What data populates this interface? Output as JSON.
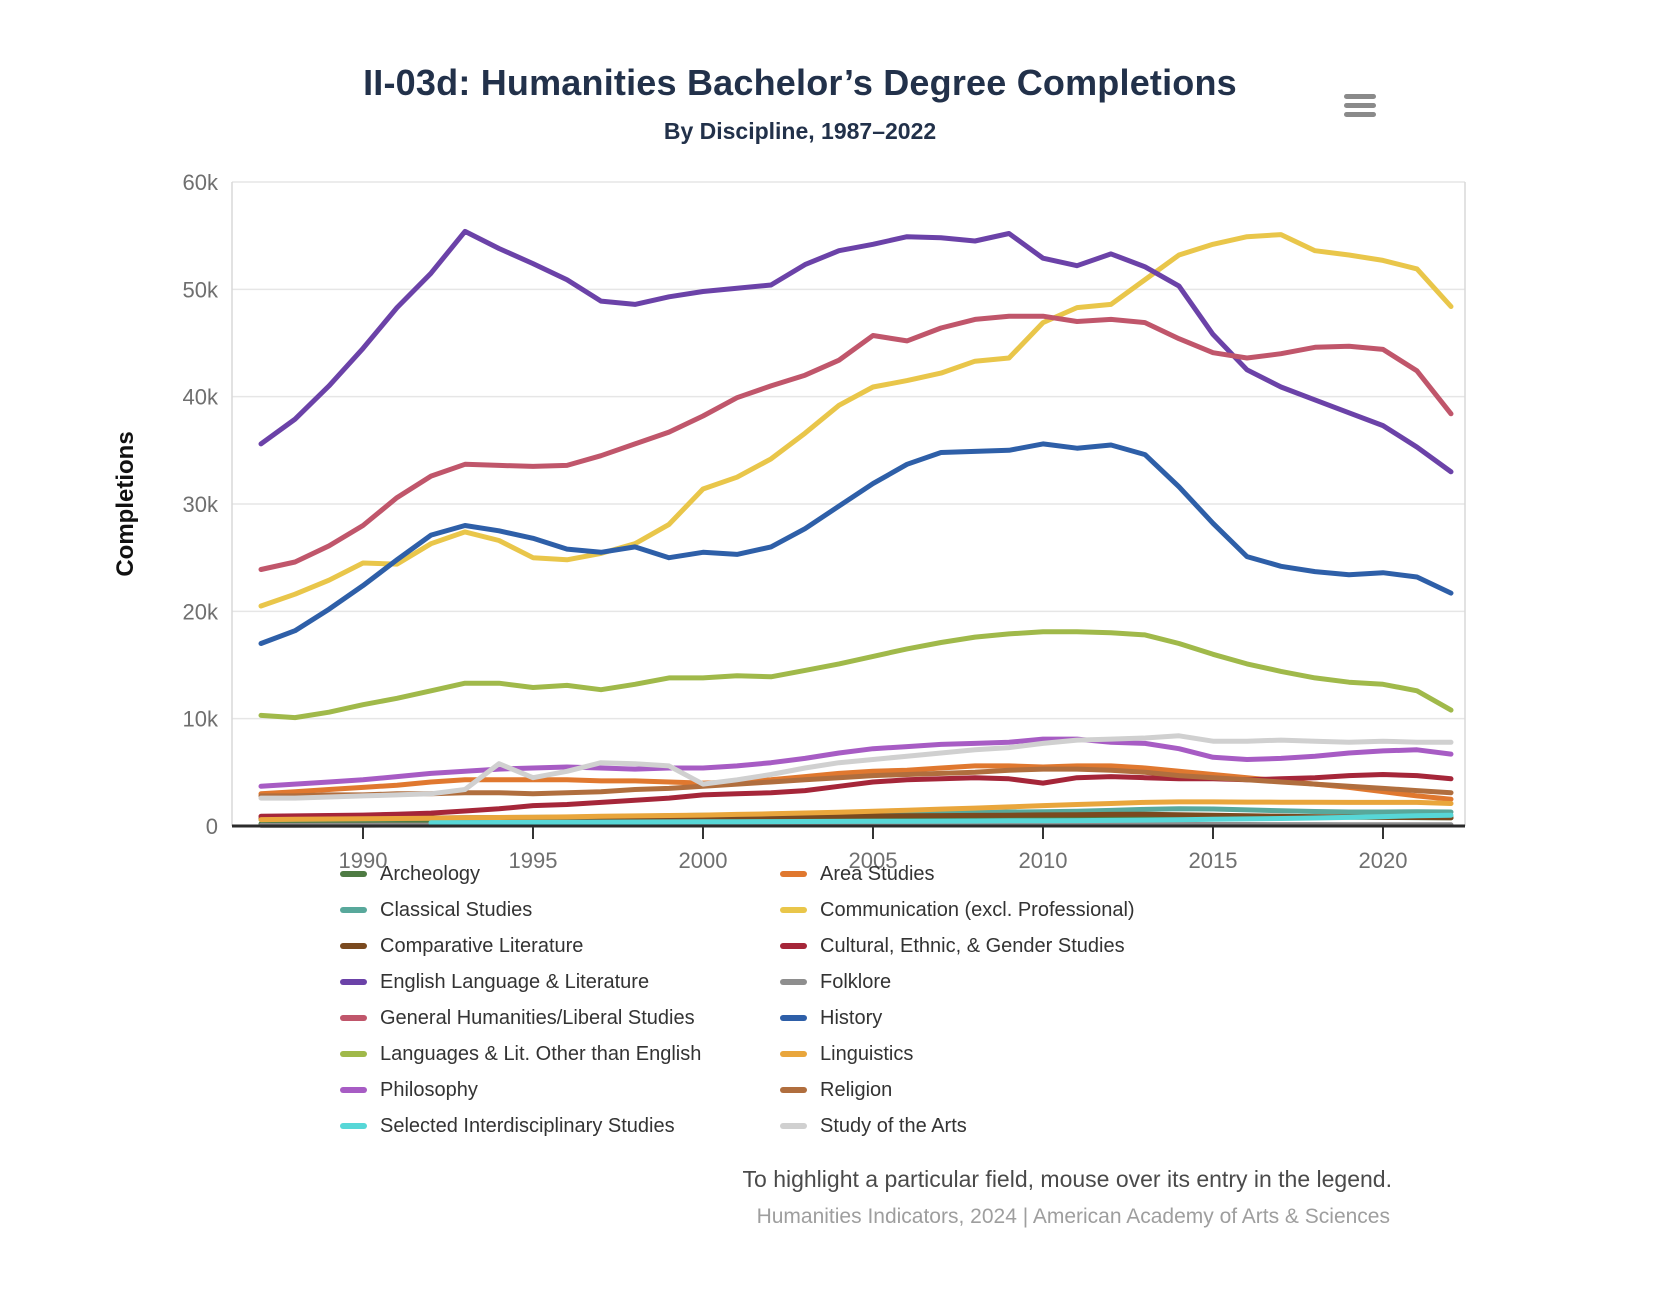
{
  "header": {
    "title": "II-03d: Humanities Bachelor’s Degree Completions",
    "subtitle": "By Discipline, 1987–2022"
  },
  "y_axis": {
    "title": "Completions",
    "ticks": [
      {
        "value": 0,
        "label": "0"
      },
      {
        "value": 10000,
        "label": "10k"
      },
      {
        "value": 20000,
        "label": "20k"
      },
      {
        "value": 30000,
        "label": "30k"
      },
      {
        "value": 40000,
        "label": "40k"
      },
      {
        "value": 50000,
        "label": "50k"
      },
      {
        "value": 60000,
        "label": "60k"
      }
    ]
  },
  "x_axis": {
    "ticks": [
      {
        "value": 1990,
        "label": "1990"
      },
      {
        "value": 1995,
        "label": "1995"
      },
      {
        "value": 2000,
        "label": "2000"
      },
      {
        "value": 2005,
        "label": "2005"
      },
      {
        "value": 2010,
        "label": "2010"
      },
      {
        "value": 2015,
        "label": "2015"
      },
      {
        "value": 2020,
        "label": "2020"
      }
    ]
  },
  "footer": {
    "hint": "To highlight a particular field, mouse over its entry in the legend.",
    "credits": "Humanities Indicators, 2024 | American Academy of Arts & Sciences"
  },
  "chart_data": {
    "type": "line",
    "title": "II-03d: Humanities Bachelor’s Degree Completions",
    "subtitle": "By Discipline, 1987–2022",
    "xlabel": "",
    "ylabel": "Completions",
    "x_range": [
      1987,
      2022
    ],
    "ylim": [
      0,
      60000
    ],
    "grid": true,
    "legend_position": "bottom, two columns",
    "x": [
      1987,
      1988,
      1989,
      1990,
      1991,
      1992,
      1993,
      1994,
      1995,
      1996,
      1997,
      1998,
      1999,
      2000,
      2001,
      2002,
      2003,
      2004,
      2005,
      2006,
      2007,
      2008,
      2009,
      2010,
      2011,
      2012,
      2013,
      2014,
      2015,
      2016,
      2017,
      2018,
      2019,
      2020,
      2021,
      2022
    ],
    "series": [
      {
        "name": "Archeology",
        "color": "#4e7b43",
        "values": [
          200,
          220,
          240,
          260,
          280,
          300,
          320,
          340,
          360,
          380,
          400,
          420,
          450,
          470,
          500,
          530,
          560,
          590,
          620,
          650,
          680,
          700,
          730,
          760,
          790,
          820,
          860,
          880,
          900,
          880,
          860,
          850,
          830,
          800,
          780,
          760
        ]
      },
      {
        "name": "Area Studies",
        "color": "#e0782f",
        "values": [
          3000,
          3200,
          3400,
          3600,
          3800,
          4100,
          4300,
          4300,
          4300,
          4300,
          4200,
          4200,
          4100,
          4000,
          4100,
          4300,
          4600,
          4900,
          5100,
          5200,
          5400,
          5600,
          5600,
          5500,
          5600,
          5600,
          5400,
          5100,
          4800,
          4500,
          4200,
          3900,
          3600,
          3200,
          2800,
          2500
        ]
      },
      {
        "name": "Classical Studies",
        "color": "#58a89b",
        "values": [
          600,
          620,
          640,
          660,
          690,
          720,
          750,
          780,
          800,
          830,
          860,
          890,
          950,
          1000,
          1030,
          1060,
          1090,
          1120,
          1150,
          1180,
          1220,
          1260,
          1300,
          1330,
          1380,
          1450,
          1550,
          1600,
          1580,
          1500,
          1420,
          1350,
          1300,
          1300,
          1320,
          1300
        ]
      },
      {
        "name": "Communication (excl. Professional)",
        "color": "#e9c64a",
        "values": [
          20500,
          21600,
          22900,
          24500,
          24400,
          26300,
          27400,
          26600,
          25000,
          24800,
          25400,
          26300,
          28100,
          31400,
          32500,
          34200,
          36600,
          39200,
          40900,
          41500,
          42200,
          43300,
          43600,
          46900,
          48300,
          48600,
          50900,
          53200,
          54200,
          54900,
          55100,
          53600,
          53200,
          52700,
          51900,
          48400
        ]
      },
      {
        "name": "Comparative Literature",
        "color": "#7a4a1f",
        "values": [
          700,
          710,
          720,
          730,
          740,
          750,
          760,
          770,
          780,
          790,
          800,
          810,
          820,
          830,
          850,
          870,
          890,
          910,
          930,
          950,
          970,
          990,
          1010,
          1030,
          1050,
          1080,
          1100,
          1050,
          1000,
          950,
          900,
          870,
          840,
          820,
          790,
          760
        ]
      },
      {
        "name": "Cultural, Ethnic, & Gender Studies",
        "color": "#a52639",
        "values": [
          900,
          940,
          980,
          1020,
          1100,
          1200,
          1400,
          1600,
          1900,
          2000,
          2200,
          2400,
          2600,
          2900,
          3000,
          3100,
          3300,
          3700,
          4100,
          4300,
          4400,
          4500,
          4400,
          4000,
          4500,
          4600,
          4500,
          4400,
          4400,
          4300,
          4400,
          4500,
          4700,
          4800,
          4700,
          4400
        ]
      },
      {
        "name": "English Language & Literature",
        "color": "#6b42a8",
        "values": [
          35600,
          37900,
          41000,
          44500,
          48300,
          51500,
          55400,
          53800,
          52400,
          50900,
          48900,
          48600,
          49300,
          49800,
          50100,
          50400,
          52300,
          53600,
          54200,
          54900,
          54800,
          54500,
          55200,
          52900,
          52200,
          53300,
          52100,
          50300,
          45800,
          42500,
          40900,
          39700,
          38500,
          37300,
          35300,
          33000
        ]
      },
      {
        "name": "Folklore",
        "color": "#8e8e8e",
        "values": [
          60,
          60,
          70,
          70,
          80,
          80,
          90,
          90,
          100,
          100,
          100,
          110,
          110,
          110,
          120,
          120,
          120,
          130,
          130,
          130,
          140,
          140,
          140,
          150,
          150,
          150,
          150,
          150,
          140,
          140,
          130,
          130,
          120,
          120,
          110,
          110
        ]
      },
      {
        "name": "General Humanities/Liberal Studies",
        "color": "#c0566b",
        "values": [
          23900,
          24600,
          26100,
          28000,
          30600,
          32600,
          33700,
          33600,
          33500,
          33600,
          34500,
          35600,
          36700,
          38200,
          39900,
          41000,
          42000,
          43400,
          45700,
          45200,
          46400,
          47200,
          47500,
          47500,
          47000,
          47200,
          46900,
          45400,
          44100,
          43600,
          44000,
          44600,
          44700,
          44400,
          42400,
          38400
        ]
      },
      {
        "name": "History",
        "color": "#2e5fa8",
        "values": [
          17000,
          18200,
          20200,
          22400,
          24800,
          27100,
          28000,
          27500,
          26800,
          25800,
          25500,
          26000,
          25000,
          25500,
          25300,
          26000,
          27700,
          29800,
          31900,
          33700,
          34800,
          34900,
          35000,
          35600,
          35200,
          35500,
          34600,
          31600,
          28200,
          25100,
          24200,
          23700,
          23400,
          23600,
          23200,
          21700
        ]
      },
      {
        "name": "Languages & Lit. Other than English",
        "color": "#a0b94a",
        "values": [
          10300,
          10100,
          10600,
          11300,
          11900,
          12600,
          13300,
          13300,
          12900,
          13100,
          12700,
          13200,
          13800,
          13800,
          14000,
          13900,
          14500,
          15100,
          15800,
          16500,
          17100,
          17600,
          17900,
          18100,
          18100,
          18000,
          17800,
          17000,
          16000,
          15100,
          14400,
          13800,
          13400,
          13200,
          12600,
          10800
        ]
      },
      {
        "name": "Linguistics",
        "color": "#e9a63c",
        "values": [
          600,
          620,
          650,
          680,
          700,
          730,
          760,
          790,
          820,
          850,
          900,
          940,
          980,
          1020,
          1080,
          1140,
          1210,
          1290,
          1380,
          1470,
          1570,
          1670,
          1780,
          1900,
          2000,
          2100,
          2200,
          2250,
          2250,
          2230,
          2220,
          2210,
          2200,
          2200,
          2200,
          2100
        ]
      },
      {
        "name": "Philosophy",
        "color": "#a75cc4",
        "values": [
          3700,
          3900,
          4100,
          4300,
          4600,
          4900,
          5100,
          5300,
          5400,
          5500,
          5400,
          5300,
          5400,
          5400,
          5600,
          5900,
          6300,
          6800,
          7200,
          7400,
          7600,
          7700,
          7800,
          8100,
          8100,
          7800,
          7700,
          7200,
          6400,
          6200,
          6300,
          6500,
          6800,
          7000,
          7100,
          6700
        ]
      },
      {
        "name": "Religion",
        "color": "#b06e3e",
        "values": [
          2800,
          2800,
          2900,
          2900,
          3000,
          3000,
          3100,
          3100,
          3000,
          3100,
          3200,
          3400,
          3500,
          3700,
          3900,
          4100,
          4300,
          4500,
          4700,
          4800,
          4900,
          5000,
          5200,
          5300,
          5300,
          5200,
          5000,
          4700,
          4500,
          4300,
          4100,
          3900,
          3700,
          3500,
          3300,
          3100
        ]
      },
      {
        "name": "Selected Interdisciplinary Studies",
        "color": "#57d7d7",
        "values": [
          null,
          null,
          null,
          null,
          null,
          300,
          320,
          330,
          340,
          350,
          360,
          370,
          380,
          390,
          400,
          410,
          420,
          430,
          440,
          450,
          460,
          470,
          480,
          490,
          500,
          520,
          550,
          580,
          620,
          660,
          700,
          750,
          800,
          880,
          950,
          1000
        ]
      },
      {
        "name": "Study of the Arts",
        "color": "#d0d0d0",
        "values": [
          2600,
          2600,
          2700,
          2800,
          2900,
          3000,
          3400,
          5800,
          4500,
          5100,
          5900,
          5800,
          5600,
          3900,
          4300,
          4800,
          5400,
          5900,
          6200,
          6500,
          6800,
          7100,
          7300,
          7700,
          8000,
          8100,
          8200,
          8400,
          7900,
          7900,
          8000,
          7900,
          7800,
          7900,
          7800,
          7800
        ]
      }
    ]
  }
}
